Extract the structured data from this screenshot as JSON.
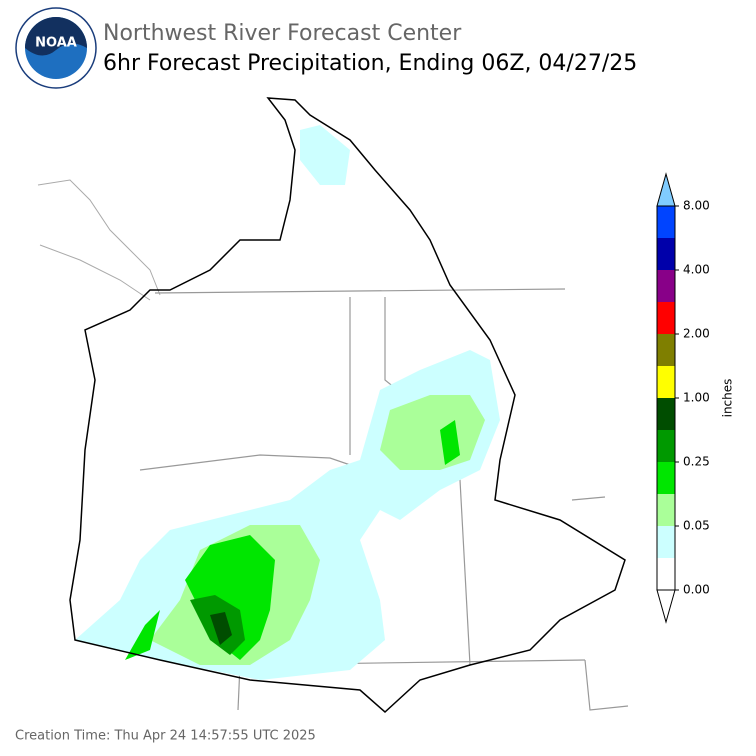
{
  "logo": "NOAA",
  "header": {
    "org": "Northwest River Forecast Center",
    "title": "6hr Forecast Precipitation, Ending 06Z, 04/27/25"
  },
  "legend": {
    "label": "inches",
    "ticks": [
      "0.00",
      "0.05",
      "0.25",
      "1.00",
      "2.00",
      "4.00",
      "8.00"
    ],
    "colors": [
      "#ffffff",
      "#ccffff",
      "#aaff99",
      "#00e600",
      "#009900",
      "#004d00",
      "#ffff00",
      "#7f7f00",
      "#ff0000",
      "#880088",
      "#0000aa",
      "#0044ff"
    ],
    "over_color": "#80ccff",
    "under_color": "#ffffff"
  },
  "footer": "Creation Time: Thu Apr 24 14:57:55 UTC 2025"
}
